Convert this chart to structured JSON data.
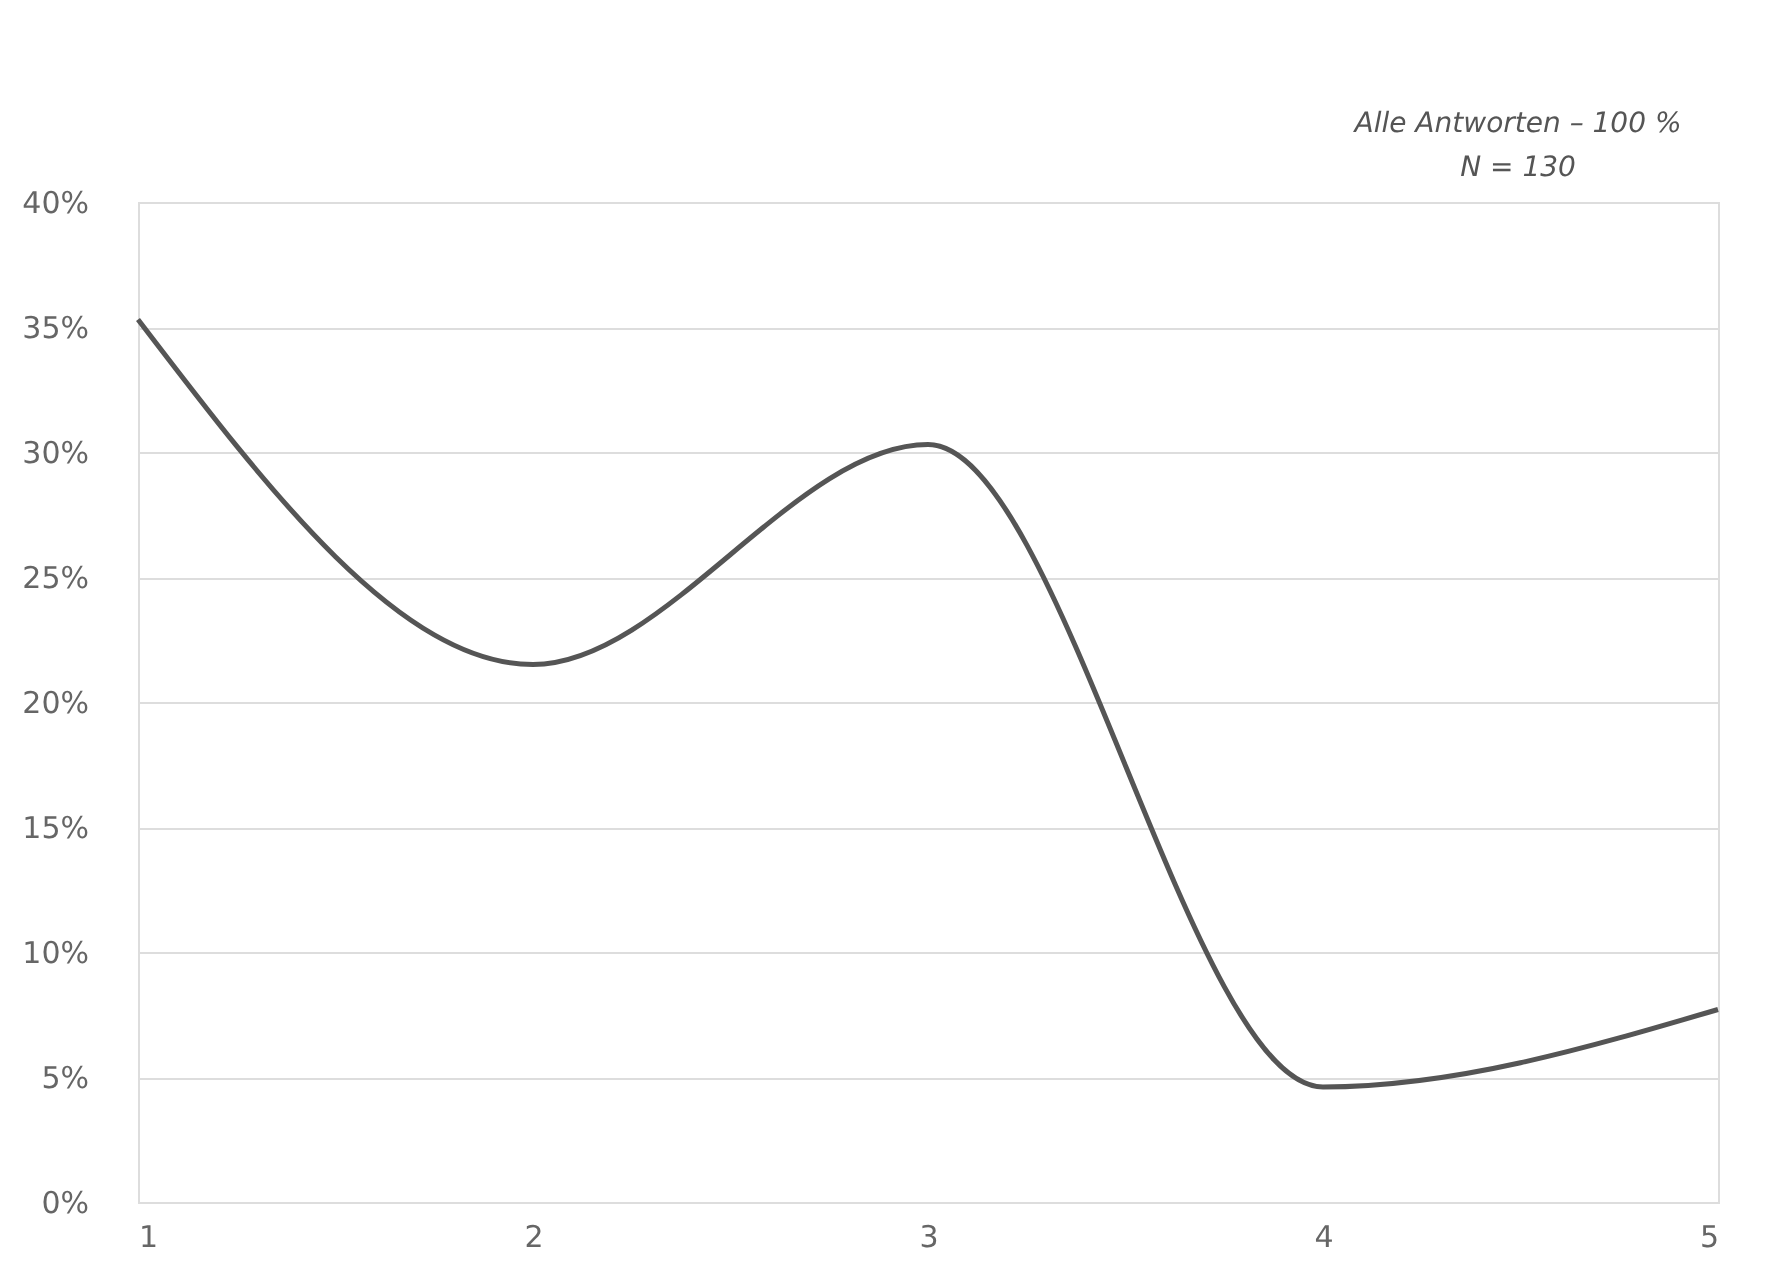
{
  "chart_data": {
    "type": "line",
    "x": [
      1,
      2,
      3,
      4,
      5
    ],
    "series": [
      {
        "color": "#555555",
        "values": [
          35.3,
          21.5,
          30.3,
          4.6,
          7.7
        ]
      }
    ],
    "xlim": [
      1,
      5
    ],
    "xticks": [
      1,
      2,
      3,
      4,
      5
    ],
    "ylim": [
      0,
      40
    ],
    "yticks": [
      {
        "value": 0,
        "label": "0%"
      },
      {
        "value": 5,
        "label": "5%"
      },
      {
        "value": 10,
        "label": "10%"
      },
      {
        "value": 15,
        "label": "15%"
      },
      {
        "value": 20,
        "label": "20%"
      },
      {
        "value": 25,
        "label": "25%"
      },
      {
        "value": 30,
        "label": "30%"
      },
      {
        "value": 35,
        "label": "35%"
      },
      {
        "value": 40,
        "label": "40%"
      }
    ],
    "grid": "y",
    "marker": "none",
    "line_style": "solid",
    "annotations": [
      "Alle Antworten – 100 %",
      "N = 130"
    ]
  }
}
